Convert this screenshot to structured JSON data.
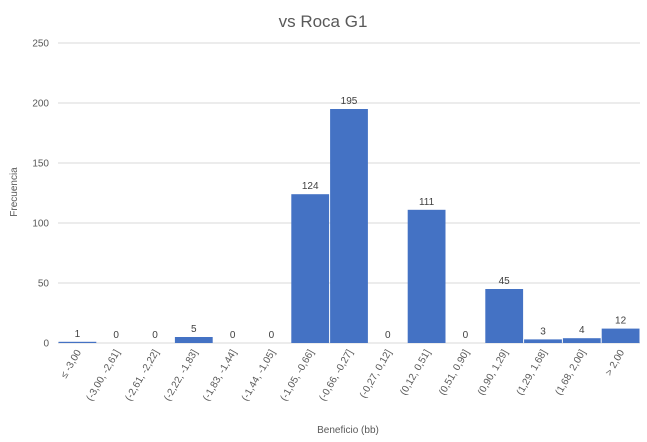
{
  "chart_data": {
    "type": "bar",
    "title": "vs Roca G1",
    "xlabel": "Beneficio (bb)",
    "ylabel": "Frecuencia",
    "ylim": [
      0,
      250
    ],
    "yticks": [
      0,
      50,
      100,
      150,
      200,
      250
    ],
    "grid": true,
    "legend": "none",
    "bar_color": "#4472C4",
    "categories": [
      "≤ -3,00",
      "(-3,00, -2,61]",
      "(-2,61, -2,22]",
      "(-2,22, -1,83]",
      "(-1,83, -1,44]",
      "(-1,44, -1,05]",
      "(-1,05, -0,66]",
      "(-0,66, -0,27]",
      "(-0,27, 0,12]",
      "(0,12, 0,51]",
      "(0,51, 0,90]",
      "(0,90, 1,29]",
      "(1,29, 1,68]",
      "(1,68, 2,00]",
      "> 2,00"
    ],
    "values": [
      1,
      0,
      0,
      5,
      0,
      0,
      124,
      195,
      0,
      111,
      0,
      45,
      3,
      4,
      12
    ]
  }
}
